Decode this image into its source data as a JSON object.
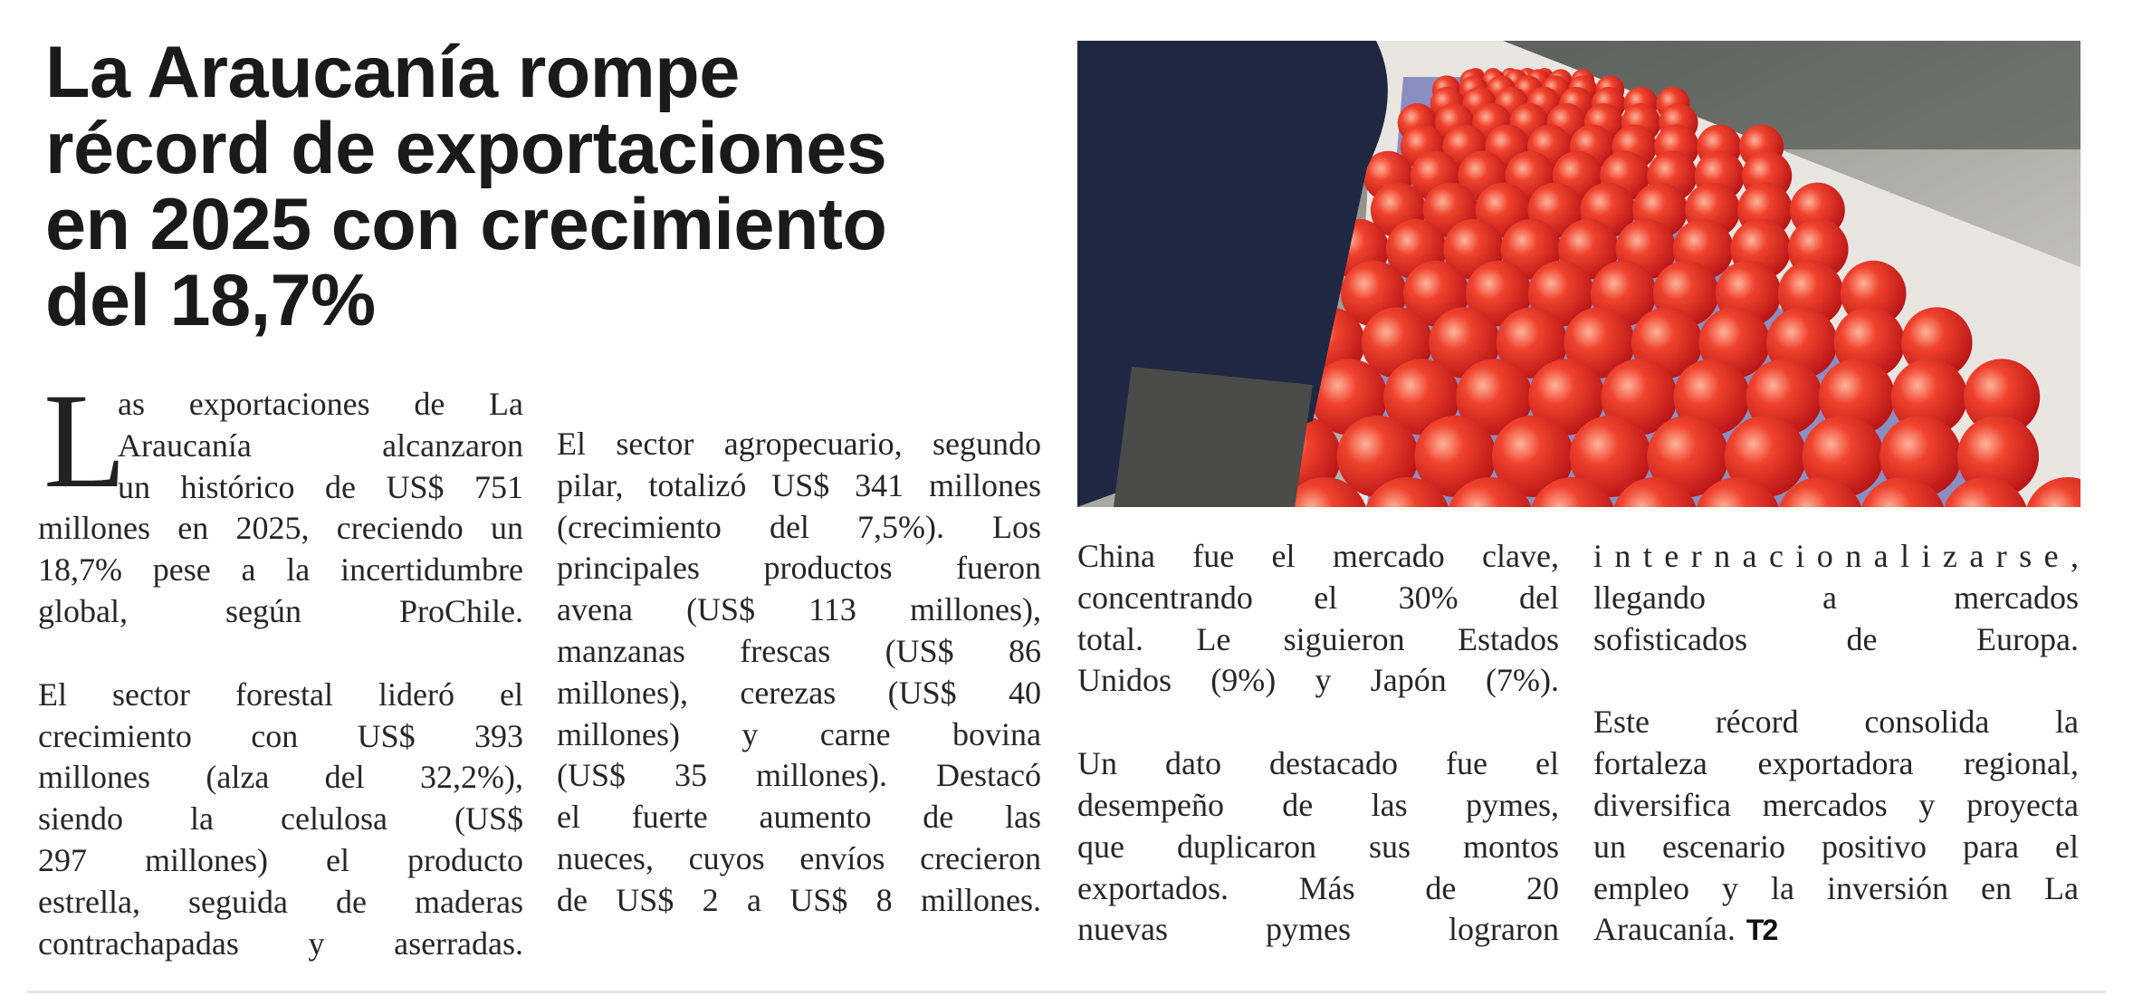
{
  "headline": {
    "lines": [
      "La Araucanía rompe",
      "récord de exportaciones",
      "en 2025 con crecimiento",
      "del 18,7%"
    ]
  },
  "photo": {
    "icon": "apples-conveyor-photo"
  },
  "columns": [
    {
      "drop_cap": "L",
      "paragraphs": [
        [
          "as exportaciones de La",
          "Araucanía alcanzaron",
          "un histórico de US$ 751",
          "millones en 2025, creciendo un",
          "18,7% pese a la incertidumbre",
          "global, según ProChile."
        ],
        [
          "El sector forestal lideró el",
          "crecimiento con US$ 393",
          "millones (alza del 32,2%),",
          "siendo la celulosa (US$",
          "297 millones) el producto",
          "estrella, seguida de maderas",
          "contrachapadas y aserradas."
        ]
      ]
    },
    {
      "paragraphs": [
        [
          "El sector agropecuario, segundo",
          "pilar, totalizó US$ 341 millones",
          "(crecimiento del 7,5%). Los",
          "principales productos fueron",
          "avena (US$ 113 millones),",
          "manzanas frescas (US$ 86",
          "millones), cerezas (US$ 40",
          "millones) y carne bovina",
          "(US$ 35 millones). Destacó",
          "el fuerte aumento de las",
          "nueces, cuyos envíos crecieron",
          "de US$ 2 a US$ 8 millones."
        ]
      ]
    },
    {
      "paragraphs": [
        [
          "China fue el mercado clave,",
          "concentrando el 30% del",
          "total. Le siguieron Estados",
          "Unidos (9%) y Japón (7%)."
        ],
        [
          "Un dato destacado fue el",
          "desempeño de las pymes,",
          "que duplicaron sus montos",
          "exportados. Más de 20",
          "nuevas pymes lograron"
        ]
      ]
    },
    {
      "paragraphs": [
        [
          "i n t e r n a c i o n a l i z a r s e ,",
          "llegando a mercados",
          "sofisticados de Europa."
        ],
        [
          "Este récord consolida la",
          "fortaleza exportadora regional,",
          "diversifica mercados y proyecta",
          "un escenario positivo para el",
          "empleo y la inversión en La",
          "Araucanía."
        ]
      ]
    }
  ],
  "logo": "T2"
}
